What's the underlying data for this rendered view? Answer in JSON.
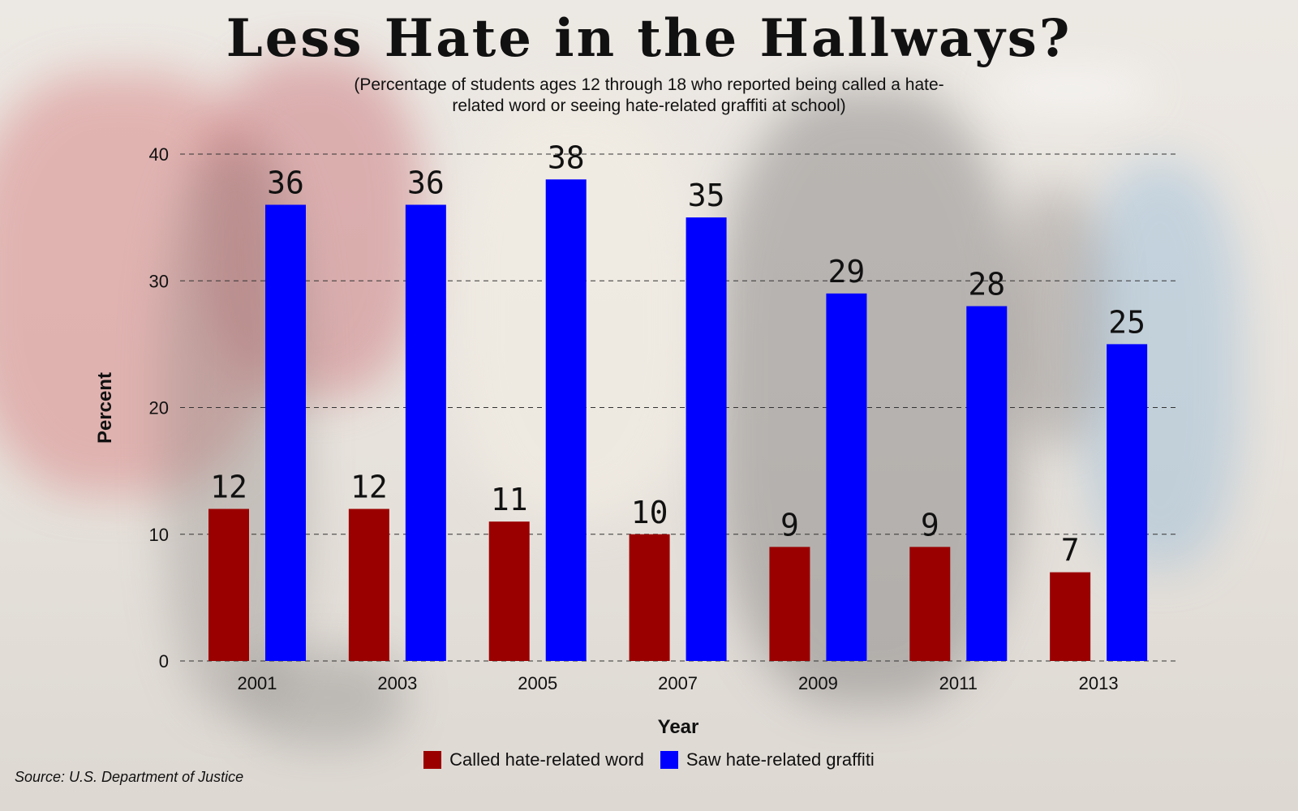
{
  "title": "Less Hate in the Hallways?",
  "subtitle_line1": "(Percentage of students ages 12 through 18 who reported being called a hate-",
  "subtitle_line2": "related word or seeing hate-related graffiti at school)",
  "source": "Source: U.S. Department of Justice",
  "colors": {
    "word": "#9b0000",
    "graffiti": "#0000ff"
  },
  "chart_data": {
    "type": "bar",
    "title": "Less Hate in the Hallways?",
    "xlabel": "Year",
    "ylabel": "Percent",
    "ylim": [
      0,
      40
    ],
    "yticks": [
      0,
      10,
      20,
      30,
      40
    ],
    "grid": true,
    "legend_position": "bottom",
    "categories": [
      "2001",
      "2003",
      "2005",
      "2007",
      "2009",
      "2011",
      "2013"
    ],
    "series": [
      {
        "name": "Called hate-related word",
        "values": [
          12,
          12,
          11,
          10,
          9,
          9,
          7
        ]
      },
      {
        "name": "Saw hate-related graffiti",
        "values": [
          36,
          36,
          38,
          35,
          29,
          28,
          25
        ]
      }
    ]
  }
}
